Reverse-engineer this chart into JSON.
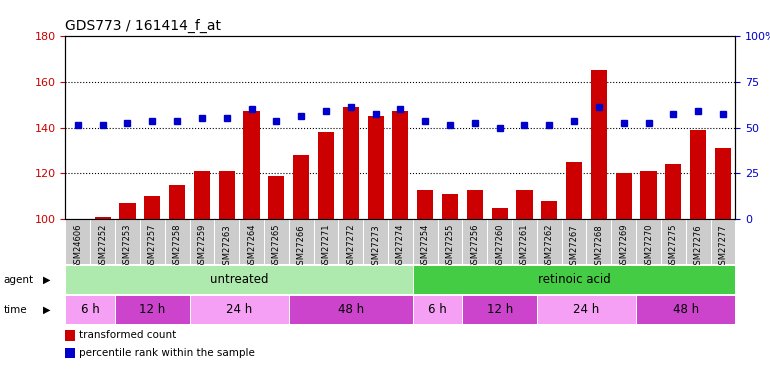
{
  "title": "GDS773 / 161414_f_at",
  "samples": [
    "GSM24606",
    "GSM27252",
    "GSM27253",
    "GSM27257",
    "GSM27258",
    "GSM27259",
    "GSM27263",
    "GSM27264",
    "GSM27265",
    "GSM27266",
    "GSM27271",
    "GSM27272",
    "GSM27273",
    "GSM27274",
    "GSM27254",
    "GSM27255",
    "GSM27256",
    "GSM27260",
    "GSM27261",
    "GSM27262",
    "GSM27267",
    "GSM27268",
    "GSM27269",
    "GSM27270",
    "GSM27275",
    "GSM27276",
    "GSM27277"
  ],
  "red_values": [
    100,
    101,
    107,
    110,
    115,
    121,
    121,
    147,
    119,
    128,
    138,
    149,
    145,
    147,
    113,
    111,
    113,
    105,
    113,
    108,
    125,
    165,
    120,
    121,
    124,
    139,
    131
  ],
  "blue_values": [
    141,
    141,
    142,
    143,
    143,
    144,
    144,
    148,
    143,
    145,
    147,
    149,
    146,
    148,
    143,
    141,
    142,
    140,
    141,
    141,
    143,
    149,
    142,
    142,
    146,
    147,
    146
  ],
  "red_base": 100,
  "ylim_left": [
    100,
    180
  ],
  "ylim_right": [
    0,
    100
  ],
  "yticks_left": [
    100,
    120,
    140,
    160,
    180
  ],
  "yticks_right": [
    0,
    25,
    50,
    75,
    100
  ],
  "ytick_labels_right": [
    "0",
    "25",
    "50",
    "75",
    "100%"
  ],
  "agent_groups": [
    {
      "label": "untreated",
      "start": 0,
      "end": 14,
      "color": "#aeeaae"
    },
    {
      "label": "retinoic acid",
      "start": 14,
      "end": 27,
      "color": "#44cc44"
    }
  ],
  "time_groups": [
    {
      "label": "6 h",
      "start": 0,
      "end": 2,
      "alt": 0
    },
    {
      "label": "12 h",
      "start": 2,
      "end": 5,
      "alt": 1
    },
    {
      "label": "24 h",
      "start": 5,
      "end": 9,
      "alt": 0
    },
    {
      "label": "48 h",
      "start": 9,
      "end": 14,
      "alt": 1
    },
    {
      "label": "6 h",
      "start": 14,
      "end": 16,
      "alt": 0
    },
    {
      "label": "12 h",
      "start": 16,
      "end": 19,
      "alt": 1
    },
    {
      "label": "24 h",
      "start": 19,
      "end": 23,
      "alt": 0
    },
    {
      "label": "48 h",
      "start": 23,
      "end": 27,
      "alt": 1
    }
  ],
  "time_colors": [
    "#f5a0f5",
    "#cc44cc"
  ],
  "bar_color": "#cc0000",
  "dot_color": "#0000cc",
  "bg_color": "#ffffff",
  "tick_color_left": "#cc0000",
  "tick_color_right": "#0000cc",
  "label_bg_color": "#cccccc",
  "legend_items": [
    {
      "color": "#cc0000",
      "label": "transformed count"
    },
    {
      "color": "#0000cc",
      "label": "percentile rank within the sample"
    }
  ],
  "gridlines": [
    120,
    140,
    160
  ],
  "bar_width": 0.65
}
